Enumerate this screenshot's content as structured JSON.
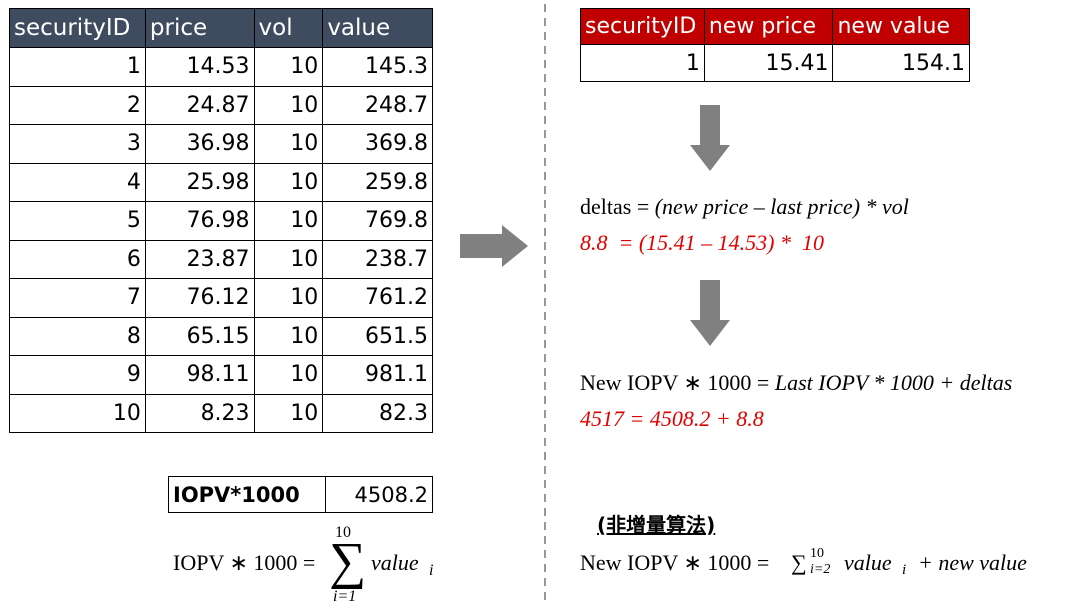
{
  "left_table": {
    "headers": [
      "securityID",
      "price",
      "vol",
      "value"
    ],
    "rows": [
      [
        1,
        14.53,
        10,
        145.3
      ],
      [
        2,
        24.87,
        10,
        248.7
      ],
      [
        3,
        36.98,
        10,
        369.8
      ],
      [
        4,
        25.98,
        10,
        259.8
      ],
      [
        5,
        76.98,
        10,
        769.8
      ],
      [
        6,
        23.87,
        10,
        238.7
      ],
      [
        7,
        76.12,
        10,
        761.2
      ],
      [
        8,
        65.15,
        10,
        651.5
      ],
      [
        9,
        98.11,
        10,
        981.1
      ],
      [
        10,
        8.23,
        10,
        82.3
      ]
    ]
  },
  "iopv_box": {
    "label": "IOPV*1000",
    "value": 4508.2
  },
  "left_formula": {
    "lhs": "IOPV ∗ 1000 =",
    "sum": "∑",
    "upper": "10",
    "lower": "i=1",
    "term": "value",
    "sub": "i"
  },
  "right_table": {
    "headers": [
      "securityID",
      "new price",
      "new value"
    ],
    "rows": [
      [
        1,
        15.41,
        154.1
      ]
    ]
  },
  "deltas": {
    "lhs": "deltas =",
    "rhs": "(new price – last price) * vol",
    "example": "8.8  = (15.41 – 14.53) *  10"
  },
  "new_iopv": {
    "lhs": "New IOPV ∗ 1000 =",
    "rhs": "Last IOPV * 1000 + deltas",
    "example": "4517 = 4508.2 + 8.8"
  },
  "note": "(非增量算法)",
  "bottom_formula": {
    "lhs": "New IOPV ∗ 1000 =",
    "sum": "∑",
    "upper": "10",
    "lower": "i=2",
    "term": "value",
    "sub": "i",
    "rest": "+ new value"
  }
}
